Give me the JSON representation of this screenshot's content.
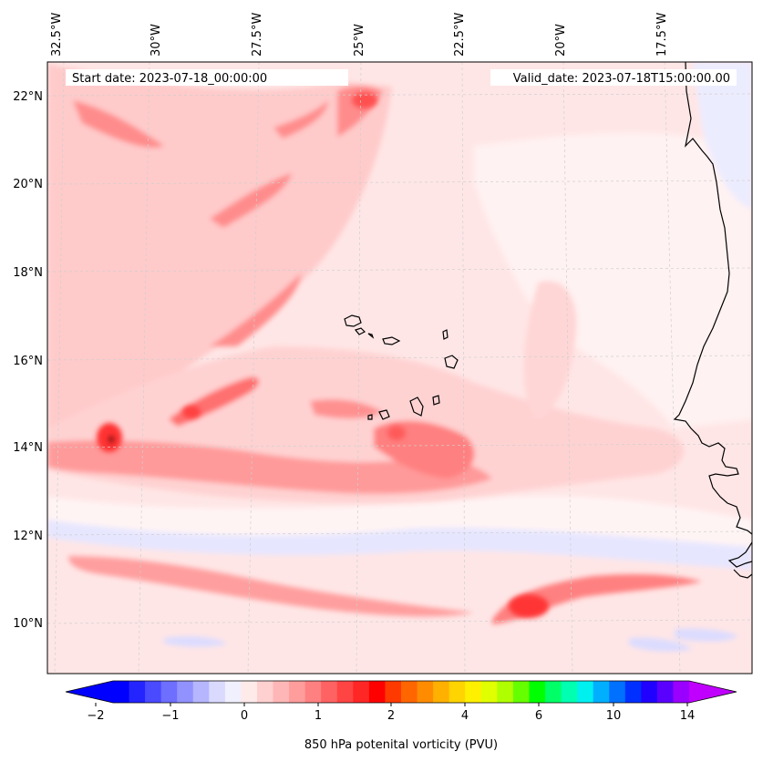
{
  "header": {
    "start_date": "Start date: 2023-07-18_00:00:00",
    "valid_date": "Valid_date: 2023-07-18T15:00:00.00"
  },
  "axes": {
    "lon_labels": [
      "32.5°W",
      "30°W",
      "27.5°W",
      "25°W",
      "22.5°W",
      "20°W",
      "17.5°W"
    ],
    "lon_values": [
      -32.5,
      -30,
      -27.5,
      -25,
      -22.5,
      -20,
      -17.5
    ],
    "lat_labels": [
      "22°N",
      "20°N",
      "18°N",
      "16°N",
      "14°N",
      "12°N",
      "10°N"
    ],
    "lat_values": [
      22,
      20,
      18,
      16,
      14,
      12,
      10
    ],
    "lon_range": [
      -33.0,
      -15.6
    ],
    "lat_range": [
      8.9,
      22.8
    ]
  },
  "colorbar": {
    "label": "850 hPa potenital vorticity (PVU)",
    "tick_labels": [
      "−2",
      "−1",
      "0",
      "1",
      "2",
      "4",
      "6",
      "10",
      "14"
    ],
    "extend": "both",
    "colors": [
      "#0000ff",
      "#2424ff",
      "#4a4aff",
      "#6e6eff",
      "#9292ff",
      "#b6b6ff",
      "#dadaff",
      "#f0f0ff",
      "#ffeaea",
      "#ffd0d0",
      "#ffb6b6",
      "#ff9c9c",
      "#ff8080",
      "#ff6262",
      "#ff4444",
      "#ff2626",
      "#ff0000",
      "#ff3a00",
      "#ff6600",
      "#ff8c00",
      "#ffb000",
      "#ffd400",
      "#fff000",
      "#e0ff00",
      "#b0ff00",
      "#66ff00",
      "#00ff00",
      "#00ff66",
      "#00ffb0",
      "#00f0f0",
      "#00b0ff",
      "#0070ff",
      "#0030ff",
      "#2000ff",
      "#5a00ff",
      "#9a00ff"
    ],
    "under_color": "#0000ff",
    "over_color": "#c000ff"
  },
  "map": {
    "ocean_colors": {
      "background": "#ffe6e6",
      "light": "#fff2f2",
      "medium": "#ffc4c4",
      "strong": "#ff8c8c",
      "stronger": "#ff5a5a",
      "max": "#ff2020",
      "negative": "#dcdcff",
      "negative_strong": "#b0b0ff"
    }
  }
}
